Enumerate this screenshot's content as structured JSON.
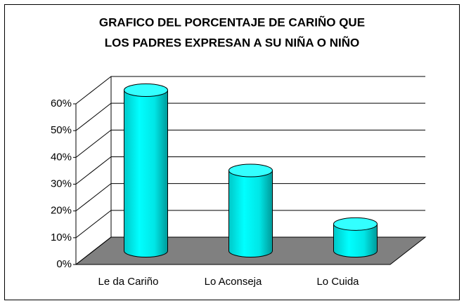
{
  "chart_data": {
    "type": "cylinder",
    "title": "GRAFICO DEL PORCENTAJE DE CARIÑO QUE",
    "subtitle": "LOS PADRES EXPRESAN A SU NIÑA O NIÑO",
    "categories": [
      "Le da Cariño",
      "Lo Aconseja",
      "Lo Cuida"
    ],
    "values": [
      60,
      30,
      10
    ],
    "color": "#00ffff",
    "ylim": [
      0,
      60
    ],
    "yticks": [
      {
        "value": 0,
        "label": "0%"
      },
      {
        "value": 10,
        "label": "10%"
      },
      {
        "value": 20,
        "label": "20%"
      },
      {
        "value": 30,
        "label": "30%"
      },
      {
        "value": 40,
        "label": "40%"
      },
      {
        "value": 50,
        "label": "50%"
      },
      {
        "value": 60,
        "label": "60%"
      }
    ],
    "grid": true
  }
}
